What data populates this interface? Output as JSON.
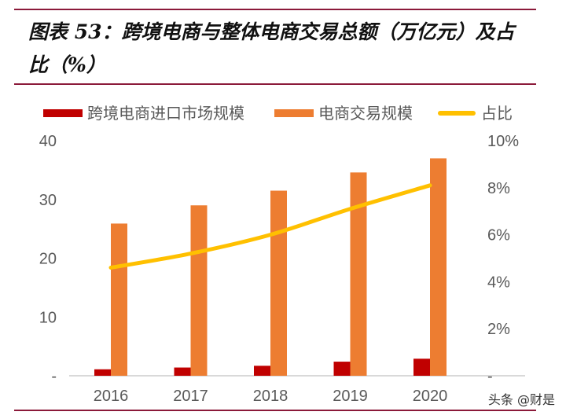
{
  "title": "图表 53：跨境电商与整体电商交易总额（万亿元）及占比（%）",
  "watermark": "头条 @财是",
  "chart_data": {
    "type": "bar",
    "title": "图表 53：跨境电商与整体电商交易总额（万亿元）及占比（%）",
    "categories": [
      "2016",
      "2017",
      "2018",
      "2019",
      "2020"
    ],
    "series": [
      {
        "name": "跨境电商进口市场规模",
        "type": "bar",
        "axis": "left",
        "color": "#c00000",
        "values": [
          1.1,
          1.4,
          1.7,
          2.4,
          2.9
        ]
      },
      {
        "name": "电商交易规模",
        "type": "bar",
        "axis": "left",
        "color": "#ed7d31",
        "values": [
          25.9,
          29.0,
          31.5,
          34.6,
          37.0
        ]
      },
      {
        "name": "占比",
        "type": "line",
        "axis": "right",
        "color": "#ffc000",
        "values": [
          4.6,
          5.2,
          6.0,
          7.1,
          8.1
        ]
      }
    ],
    "left_axis": {
      "ylim": [
        0,
        40
      ],
      "ticks": [
        "-",
        "10",
        "20",
        "30",
        "40"
      ]
    },
    "right_axis": {
      "ylim": [
        0,
        10
      ],
      "ticks": [
        "-",
        "2%",
        "4%",
        "6%",
        "8%",
        "10%"
      ]
    },
    "legend": "top",
    "grid": false
  }
}
